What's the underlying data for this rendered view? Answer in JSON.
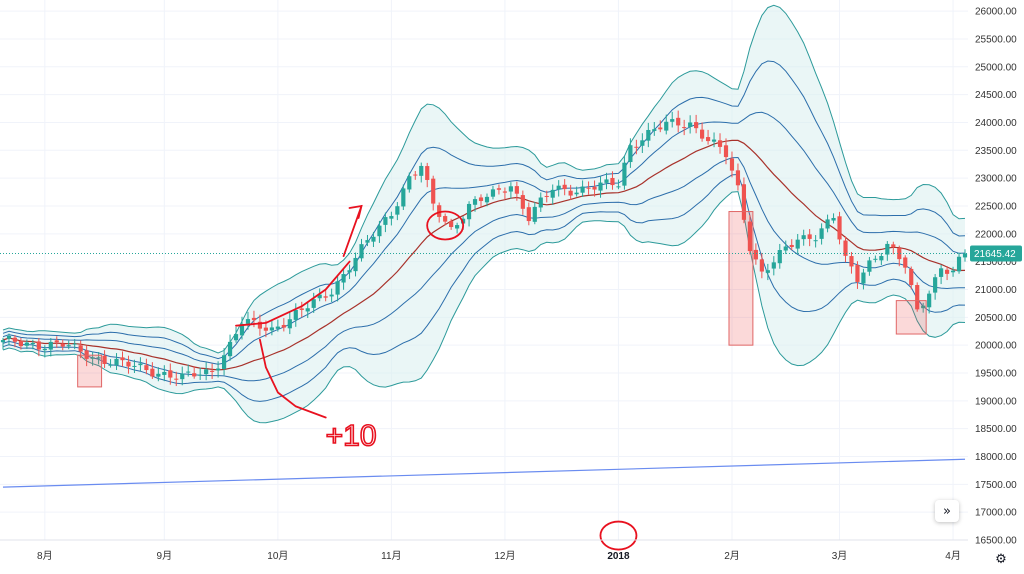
{
  "chart_data": {
    "type": "candlestick",
    "title": "",
    "ylim": [
      16500,
      26200
    ],
    "y_ticks": [
      16500,
      17000,
      17500,
      18000,
      18500,
      19000,
      19500,
      20000,
      20500,
      21000,
      21500,
      22000,
      22500,
      23000,
      23500,
      24000,
      24500,
      25000,
      25500,
      26000
    ],
    "y_tick_labels": [
      "16500.00",
      "17000.00",
      "17500.00",
      "18000.00",
      "18500.00",
      "19000.00",
      "19500.00",
      "20000.00",
      "20500.00",
      "21000.00",
      "21500.00",
      "22000.00",
      "22500.00",
      "23000.00",
      "23500.00",
      "24000.00",
      "24500.00",
      "25000.00",
      "25500.00",
      "26000.00"
    ],
    "x_ticks": [
      {
        "label": "8月",
        "index": 7
      },
      {
        "label": "9月",
        "index": 27
      },
      {
        "label": "10月",
        "index": 46
      },
      {
        "label": "11月",
        "index": 65
      },
      {
        "label": "12月",
        "index": 84
      },
      {
        "label": "2018",
        "index": 103,
        "bold": true
      },
      {
        "label": "2月",
        "index": 122
      },
      {
        "label": "3月",
        "index": 140
      },
      {
        "label": "4月",
        "index": 159
      }
    ],
    "n_bars": 162,
    "last_price": 21645.42,
    "last_price_label": "21645.42",
    "close_anchors": [
      [
        0,
        20050
      ],
      [
        10,
        20000
      ],
      [
        15,
        19800
      ],
      [
        20,
        19650
      ],
      [
        25,
        19550
      ],
      [
        30,
        19400
      ],
      [
        35,
        19550
      ],
      [
        38,
        20000
      ],
      [
        40,
        20400
      ],
      [
        45,
        20300
      ],
      [
        50,
        20600
      ],
      [
        55,
        21000
      ],
      [
        60,
        21700
      ],
      [
        65,
        22400
      ],
      [
        68,
        23000
      ],
      [
        70,
        23200
      ],
      [
        72,
        22500
      ],
      [
        75,
        22100
      ],
      [
        78,
        22500
      ],
      [
        82,
        22700
      ],
      [
        85,
        22900
      ],
      [
        88,
        22300
      ],
      [
        92,
        22800
      ],
      [
        96,
        22800
      ],
      [
        100,
        22850
      ],
      [
        103,
        22900
      ],
      [
        105,
        23600
      ],
      [
        108,
        23800
      ],
      [
        111,
        23950
      ],
      [
        115,
        24000
      ],
      [
        118,
        23700
      ],
      [
        121,
        23400
      ],
      [
        123,
        22800
      ],
      [
        125,
        21800
      ],
      [
        127,
        21300
      ],
      [
        130,
        21600
      ],
      [
        133,
        21900
      ],
      [
        136,
        22000
      ],
      [
        139,
        22300
      ],
      [
        141,
        21500
      ],
      [
        143,
        21200
      ],
      [
        145,
        21500
      ],
      [
        148,
        21800
      ],
      [
        151,
        21400
      ],
      [
        153,
        20600
      ],
      [
        155,
        21000
      ],
      [
        157,
        21400
      ],
      [
        159,
        21300
      ],
      [
        161,
        21645
      ]
    ],
    "bollinger": {
      "period": 20,
      "multipliers": [
        1,
        2,
        3
      ],
      "middle_color": "#a8322b",
      "inner_color": "#2c6eab",
      "outer_color": "#2c9a9a",
      "fill_color": "#d8eeee"
    },
    "trend_line": {
      "color": "#6a8cf0",
      "start": [
        0,
        17450
      ],
      "end": [
        161,
        17950
      ]
    },
    "colors": {
      "up": "#26a69a",
      "down": "#ef5350"
    },
    "highlight_boxes": [
      {
        "from_index": 13,
        "to_index": 16,
        "low": 19250,
        "high": 19820
      },
      {
        "from_index": 122,
        "to_index": 125,
        "low": 20000,
        "high": 22400
      },
      {
        "from_index": 150,
        "to_index": 154,
        "low": 20200,
        "high": 20800
      }
    ],
    "circle_annotations": [
      {
        "index": 74,
        "price": 22150
      },
      {
        "index": 103,
        "price": 16580
      }
    ],
    "arrow_annotation": {
      "from": [
        57,
        21600
      ],
      "to": [
        60,
        22500
      ]
    },
    "freehand_annotations": [
      {
        "points": [
          [
            39,
            20350
          ],
          [
            44,
            20400
          ],
          [
            50,
            20700
          ],
          [
            54,
            21000
          ],
          [
            58,
            21500
          ]
        ]
      },
      {
        "points": [
          [
            43,
            20100
          ],
          [
            44,
            19600
          ],
          [
            46,
            19150
          ],
          [
            49,
            18900
          ],
          [
            54,
            18700
          ]
        ]
      }
    ],
    "note_text": "+10",
    "note_anchor": [
      54,
      18200
    ]
  },
  "controls": {
    "scroll_icon": "double-chevron-right-icon",
    "scroll_glyph": "»",
    "settings_icon": "gear-icon",
    "settings_glyph": "⚙"
  }
}
